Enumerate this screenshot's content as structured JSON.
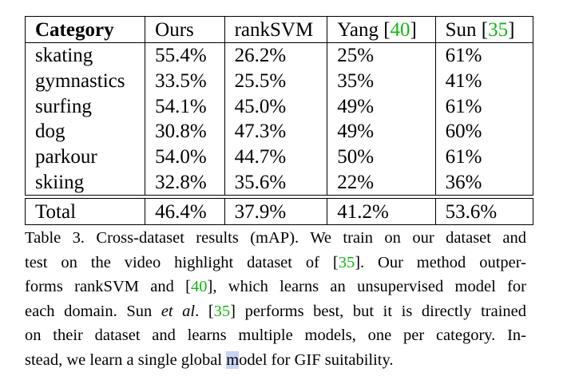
{
  "table": {
    "headers": {
      "category": "Category",
      "ours": "Ours",
      "ranksvm": "rankSVM",
      "yang_name": "Yang [",
      "yang_ref": "40",
      "yang_close": "]",
      "sun_name": "Sun [",
      "sun_ref": "35",
      "sun_close": "]"
    },
    "rows": [
      {
        "category": "skating",
        "ours": "55.4%",
        "ranksvm": "26.2%",
        "yang": "25%",
        "sun": "61%"
      },
      {
        "category": "gymnastics",
        "ours": "33.5%",
        "ranksvm": "25.5%",
        "yang": "35%",
        "sun": "41%"
      },
      {
        "category": "surfing",
        "ours": "54.1%",
        "ranksvm": "45.0%",
        "yang": "49%",
        "sun": "61%"
      },
      {
        "category": "dog",
        "ours": "30.8%",
        "ranksvm": "47.3%",
        "yang": "49%",
        "sun": "60%"
      },
      {
        "category": "parkour",
        "ours": "54.0%",
        "ranksvm": "44.7%",
        "yang": "50%",
        "sun": "61%"
      },
      {
        "category": "skiing",
        "ours": "32.8%",
        "ranksvm": "35.6%",
        "yang": "22%",
        "sun": "36%"
      }
    ],
    "total": {
      "category": "Total",
      "ours": "46.4%",
      "ranksvm": "37.9%",
      "yang": "41.2%",
      "sun": "53.6%"
    }
  },
  "caption": {
    "l1": "Table 3. Cross-dataset results (mAP). We train on our dataset and",
    "l2a": "test on the video highlight dataset of [",
    "l2ref": "35",
    "l2b": "].  Our method outper-",
    "l3a": "forms rankSVM and [",
    "l3ref": "40",
    "l3b": "], which learns an unsupervised model for",
    "l4": "each domain. Sun ",
    "l4em": "et al",
    "l4b": ". [",
    "l4ref": "35",
    "l4c": "] performs best, but it is directly trained",
    "l5": "on their dataset and learns multiple models, one per category. In-",
    "l6a": "stead, we learn a single global ",
    "l6hl": "m",
    "l6b": "odel for GIF suitability."
  }
}
